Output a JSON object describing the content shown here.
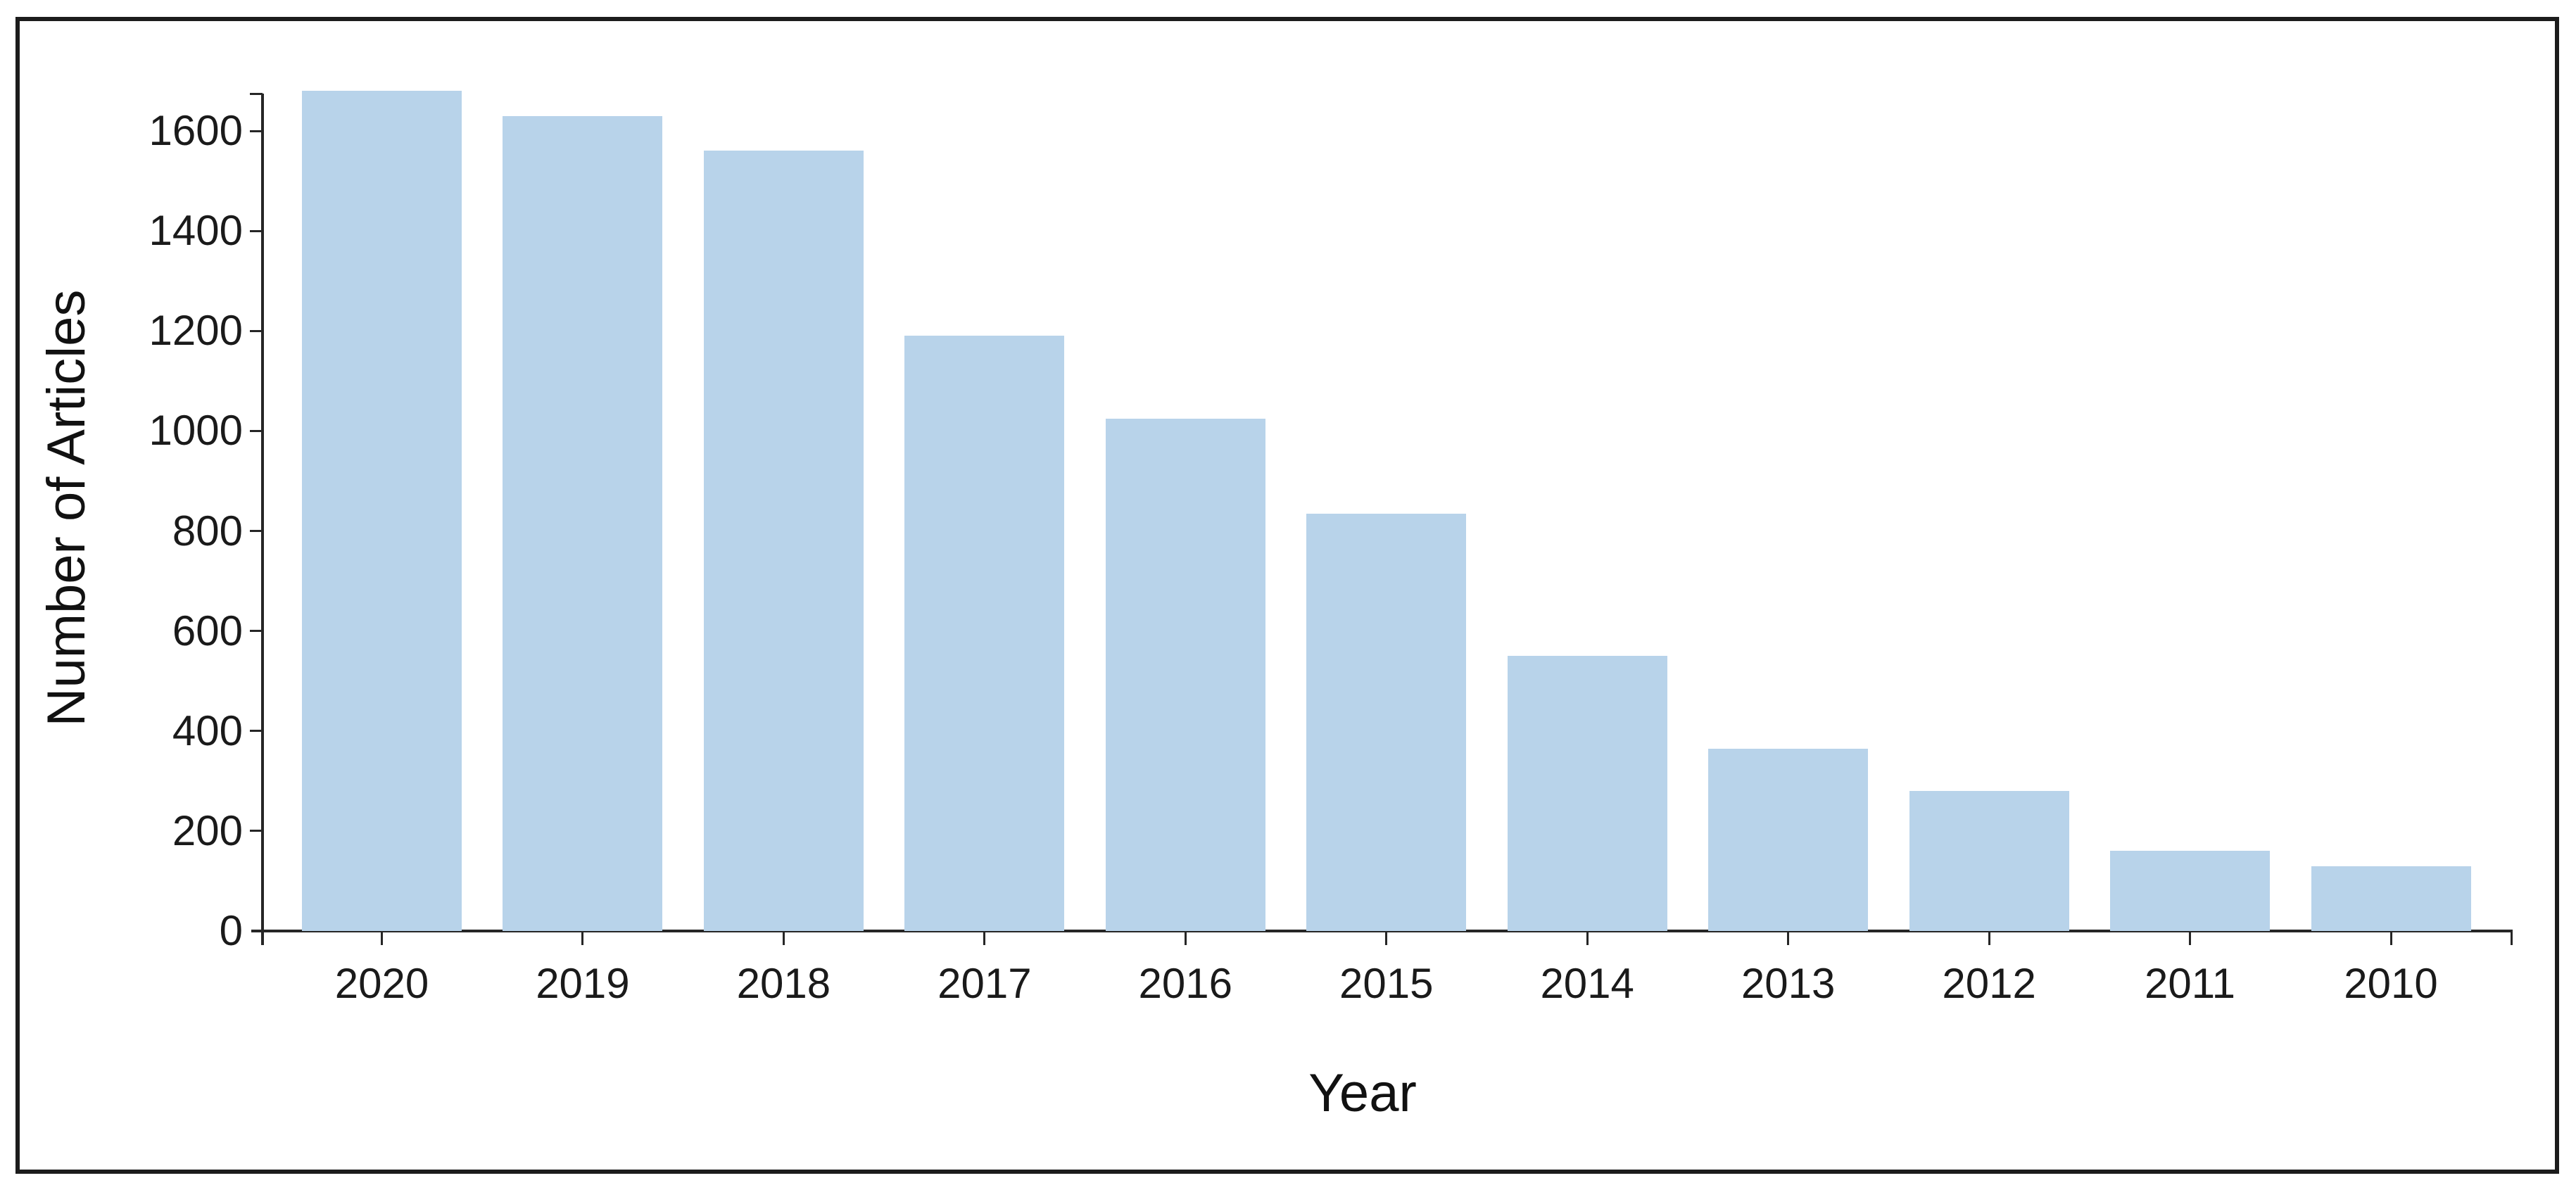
{
  "chart_data": {
    "type": "bar",
    "title": "",
    "categories": [
      "2020",
      "2019",
      "2018",
      "2017",
      "2016",
      "2015",
      "2014",
      "2013",
      "2012",
      "2011",
      "2010"
    ],
    "values": [
      1680,
      1630,
      1560,
      1190,
      1025,
      835,
      550,
      365,
      280,
      160,
      130
    ],
    "xlabel": "Year",
    "ylabel": "Number of Articles",
    "ylim": [
      0,
      1680
    ],
    "yticks": [
      0,
      200,
      400,
      600,
      800,
      1000,
      1200,
      1400,
      1600
    ],
    "grid": false,
    "legend": null,
    "bar_color": "#B8D3EA",
    "axis_color": "#262626",
    "text_color": "#1a1a1a"
  }
}
